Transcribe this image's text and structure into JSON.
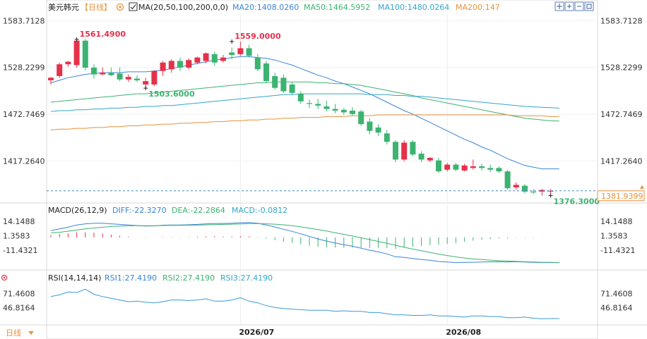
{
  "header": {
    "symbol": "美元韩元",
    "period_tag": "【日线】",
    "settings_icon": "gear-icon",
    "ma_checkbox_icon": "checkbox-icon",
    "ma_params": "MA(20,50,100,200,0,0)",
    "ma20_label": "MA20:1408.0260",
    "ma50_label": "MA50:1464.5952",
    "ma100_label": "MA100:1480.0264",
    "ma200_label": "MA200:147"
  },
  "toolbar": {
    "icons": [
      "crosshair-icon",
      "zoom-in-icon",
      "zoom-out-icon",
      "restore-icon",
      "close-icon"
    ]
  },
  "macd": {
    "params": "MACD(26,12,9)",
    "diff_label": "DIFF:-22.3270",
    "dea_label": "DEA:-22.2864",
    "macd_label": "MACD:-0.0812"
  },
  "rsi": {
    "params": "RSI(14,14,14)",
    "rsi1_label": "RSI1:27.4190",
    "rsi2_label": "RSI2:27.4190",
    "rsi3_label": "RSI3:27.4190"
  },
  "footer": {
    "period_button": "日线",
    "period_icon": "dropdown-icon",
    "dates": [
      "2026/07",
      "2026/08"
    ]
  },
  "colors": {
    "up": "#e6314a",
    "down": "#3cb371",
    "ma20": "#3a84d6",
    "ma50": "#3cb371",
    "ma100": "#32a6c9",
    "ma200": "#e8913a",
    "diff": "#3a84d6",
    "dea": "#3cb371",
    "rsi": "#3a9ad9",
    "current_price_bg": "#ffffff",
    "current_price_fg": "#e8913a"
  },
  "chart_data": [
    {
      "type": "candlestick",
      "title": "美元韩元",
      "y_ticks": [
        "1583.7128",
        "1528.2299",
        "1472.7469",
        "1417.2640"
      ],
      "y_tick_values": [
        1583.7128,
        1528.2299,
        1472.7469,
        1417.264
      ],
      "ylim": [
        1370.87,
        1591.48
      ],
      "annotations": [
        {
          "text": "1561.4900",
          "value": 1561.49,
          "candle": 3
        },
        {
          "text": "1559.0000",
          "value": 1559.0,
          "candle": 21
        },
        {
          "text": "1503.6000",
          "value": 1503.6,
          "candle": 11
        },
        {
          "text": "1376.3000",
          "value": 1376.3,
          "candle": 58
        }
      ],
      "current_price": "1381.9399",
      "current_price_value": 1381.9399,
      "x_labels": [
        {
          "text": "2026/07",
          "candle": 22
        },
        {
          "text": "2026/08",
          "candle": 46
        }
      ],
      "candles": [
        {
          "o": 1513,
          "h": 1517,
          "l": 1508,
          "c": 1516
        },
        {
          "o": 1518,
          "h": 1534,
          "l": 1516,
          "c": 1532
        },
        {
          "o": 1532,
          "h": 1536,
          "l": 1529,
          "c": 1535
        },
        {
          "o": 1531,
          "h": 1562,
          "l": 1528,
          "c": 1560
        },
        {
          "o": 1560,
          "h": 1562,
          "l": 1525,
          "c": 1528
        },
        {
          "o": 1528,
          "h": 1532,
          "l": 1515,
          "c": 1520
        },
        {
          "o": 1520,
          "h": 1528,
          "l": 1519,
          "c": 1522
        },
        {
          "o": 1522,
          "h": 1528,
          "l": 1518,
          "c": 1519
        },
        {
          "o": 1521,
          "h": 1528,
          "l": 1512,
          "c": 1514
        },
        {
          "o": 1514,
          "h": 1520,
          "l": 1511,
          "c": 1517
        },
        {
          "o": 1515,
          "h": 1519,
          "l": 1511,
          "c": 1513
        },
        {
          "o": 1508,
          "h": 1516,
          "l": 1504,
          "c": 1512
        },
        {
          "o": 1508,
          "h": 1525,
          "l": 1506,
          "c": 1524
        },
        {
          "o": 1524,
          "h": 1536,
          "l": 1518,
          "c": 1534
        },
        {
          "o": 1526,
          "h": 1538,
          "l": 1522,
          "c": 1536
        },
        {
          "o": 1536,
          "h": 1540,
          "l": 1524,
          "c": 1528
        },
        {
          "o": 1528,
          "h": 1539,
          "l": 1526,
          "c": 1537
        },
        {
          "o": 1534,
          "h": 1541,
          "l": 1532,
          "c": 1540
        },
        {
          "o": 1536,
          "h": 1546,
          "l": 1533,
          "c": 1545
        },
        {
          "o": 1544,
          "h": 1547,
          "l": 1530,
          "c": 1534
        },
        {
          "o": 1536,
          "h": 1543,
          "l": 1534,
          "c": 1540
        },
        {
          "o": 1546,
          "h": 1552,
          "l": 1538,
          "c": 1543
        },
        {
          "o": 1544,
          "h": 1559,
          "l": 1542,
          "c": 1551
        },
        {
          "o": 1551,
          "h": 1555,
          "l": 1540,
          "c": 1542
        },
        {
          "o": 1540,
          "h": 1544,
          "l": 1524,
          "c": 1526
        },
        {
          "o": 1533,
          "h": 1536,
          "l": 1510,
          "c": 1512
        },
        {
          "o": 1518,
          "h": 1522,
          "l": 1502,
          "c": 1504
        },
        {
          "o": 1516,
          "h": 1520,
          "l": 1498,
          "c": 1500
        },
        {
          "o": 1508,
          "h": 1511,
          "l": 1496,
          "c": 1498
        },
        {
          "o": 1497,
          "h": 1500,
          "l": 1485,
          "c": 1488
        },
        {
          "o": 1486,
          "h": 1490,
          "l": 1480,
          "c": 1485
        },
        {
          "o": 1485,
          "h": 1491,
          "l": 1479,
          "c": 1483
        },
        {
          "o": 1482,
          "h": 1489,
          "l": 1476,
          "c": 1479
        },
        {
          "o": 1479,
          "h": 1485,
          "l": 1474,
          "c": 1477
        },
        {
          "o": 1478,
          "h": 1480,
          "l": 1472,
          "c": 1475
        },
        {
          "o": 1477,
          "h": 1481,
          "l": 1471,
          "c": 1473
        },
        {
          "o": 1476,
          "h": 1478,
          "l": 1459,
          "c": 1461
        },
        {
          "o": 1464,
          "h": 1468,
          "l": 1449,
          "c": 1453
        },
        {
          "o": 1457,
          "h": 1461,
          "l": 1447,
          "c": 1451
        },
        {
          "o": 1450,
          "h": 1454,
          "l": 1437,
          "c": 1440
        },
        {
          "o": 1440,
          "h": 1442,
          "l": 1416,
          "c": 1419
        },
        {
          "o": 1419,
          "h": 1442,
          "l": 1417,
          "c": 1439
        },
        {
          "o": 1440,
          "h": 1442,
          "l": 1423,
          "c": 1425
        },
        {
          "o": 1426,
          "h": 1429,
          "l": 1416,
          "c": 1419
        },
        {
          "o": 1418,
          "h": 1422,
          "l": 1416,
          "c": 1421
        },
        {
          "o": 1418,
          "h": 1421,
          "l": 1403,
          "c": 1405
        },
        {
          "o": 1407,
          "h": 1415,
          "l": 1405,
          "c": 1413
        },
        {
          "o": 1413,
          "h": 1415,
          "l": 1405,
          "c": 1407
        },
        {
          "o": 1406,
          "h": 1414,
          "l": 1405,
          "c": 1412
        },
        {
          "o": 1409,
          "h": 1419,
          "l": 1407,
          "c": 1411
        },
        {
          "o": 1411,
          "h": 1414,
          "l": 1406,
          "c": 1409
        },
        {
          "o": 1409,
          "h": 1413,
          "l": 1404,
          "c": 1407
        },
        {
          "o": 1409,
          "h": 1411,
          "l": 1403,
          "c": 1405
        },
        {
          "o": 1405,
          "h": 1407,
          "l": 1383,
          "c": 1385
        },
        {
          "o": 1386,
          "h": 1392,
          "l": 1383,
          "c": 1389
        },
        {
          "o": 1388,
          "h": 1390,
          "l": 1379,
          "c": 1381
        },
        {
          "o": 1381,
          "h": 1384,
          "l": 1378,
          "c": 1380
        },
        {
          "o": 1381,
          "h": 1384,
          "l": 1376.3,
          "c": 1383
        },
        {
          "o": 1381,
          "h": 1384,
          "l": 1377,
          "c": 1382
        }
      ],
      "ma_series": [
        {
          "name": "MA20",
          "values": [
            1510,
            1513,
            1516,
            1518,
            1520,
            1521,
            1522,
            1522,
            1522,
            1523,
            1523,
            1523,
            1524,
            1525,
            1527,
            1529,
            1531,
            1533,
            1535,
            1537,
            1538,
            1540,
            1541,
            1541,
            1540,
            1539,
            1537,
            1534,
            1531,
            1527,
            1523,
            1519,
            1516,
            1512,
            1509,
            1505,
            1501,
            1497,
            1492,
            1487,
            1482,
            1477,
            1473,
            1468,
            1463,
            1458,
            1453,
            1448,
            1443,
            1439,
            1434,
            1430,
            1425,
            1420,
            1416,
            1412,
            1410,
            1408,
            1408,
            1408
          ]
        },
        {
          "name": "MA50",
          "values": [
            1487,
            1488,
            1489,
            1490,
            1491,
            1492,
            1493,
            1494,
            1495,
            1496,
            1497,
            1497,
            1498,
            1499,
            1500,
            1501,
            1502,
            1503,
            1504,
            1505,
            1506,
            1507,
            1508,
            1509,
            1510,
            1510,
            1511,
            1511,
            1511,
            1511,
            1511,
            1510,
            1510,
            1509,
            1509,
            1508,
            1507,
            1505,
            1503,
            1501,
            1499,
            1497,
            1495,
            1492,
            1490,
            1488,
            1486,
            1484,
            1482,
            1480,
            1478,
            1476,
            1474,
            1472,
            1470,
            1468,
            1467,
            1466,
            1465,
            1464.6
          ]
        },
        {
          "name": "MA100",
          "values": [
            1476,
            1477,
            1477,
            1478,
            1478,
            1479,
            1479,
            1480,
            1480,
            1481,
            1481,
            1482,
            1482,
            1483,
            1483,
            1484,
            1485,
            1486,
            1487,
            1488,
            1489,
            1490,
            1491,
            1492,
            1493,
            1494,
            1495,
            1496,
            1496,
            1497,
            1497,
            1497,
            1497,
            1497,
            1497,
            1497,
            1497,
            1496,
            1496,
            1496,
            1495,
            1495,
            1494,
            1494,
            1493,
            1492,
            1491,
            1490,
            1489,
            1488,
            1487,
            1486,
            1485,
            1484,
            1483,
            1482,
            1481.5,
            1481,
            1480.5,
            1480
          ]
        },
        {
          "name": "MA200",
          "values": [
            1454,
            1455,
            1455,
            1456,
            1456,
            1457,
            1457,
            1458,
            1458,
            1459,
            1459,
            1460,
            1460,
            1461,
            1461,
            1462,
            1462,
            1463,
            1463,
            1464,
            1464,
            1465,
            1465,
            1466,
            1466,
            1467,
            1467,
            1468,
            1468,
            1469,
            1469,
            1469,
            1470,
            1470,
            1470,
            1471,
            1471,
            1471,
            1472,
            1472,
            1472,
            1472,
            1472,
            1472,
            1472,
            1472,
            1472,
            1472,
            1472,
            1472,
            1472,
            1472,
            1472,
            1472,
            1471,
            1471,
            1471,
            1471,
            1470,
            1470
          ]
        }
      ]
    },
    {
      "type": "macd",
      "y_ticks": [
        "14.1488",
        "1.3583",
        "-11.4321"
      ],
      "y_tick_values": [
        14.1488,
        1.3583,
        -11.4321
      ],
      "ylim": [
        -27,
        18
      ],
      "diff": [
        6,
        7.5,
        9,
        11,
        12,
        12.5,
        12.5,
        12,
        11.5,
        11,
        10.5,
        10,
        10.2,
        10.8,
        11,
        11,
        11.2,
        11.5,
        12,
        12.3,
        12.3,
        12.5,
        13,
        13.2,
        12.5,
        11,
        9.2,
        7.2,
        5.3,
        3.1,
        0.8,
        -1.4,
        -3.3,
        -5,
        -6.5,
        -7.9,
        -9.6,
        -11.4,
        -12.9,
        -14.7,
        -17.2,
        -17.8,
        -18.7,
        -19.6,
        -20.3,
        -21.4,
        -21.8,
        -22.4,
        -22.2,
        -22.1,
        -21.8,
        -21.7,
        -21.6,
        -21.8,
        -21.6,
        -21.9,
        -22.2,
        -22.3,
        -22.3,
        -22.3
      ],
      "dea": [
        4,
        4.5,
        5.5,
        6.5,
        7.5,
        8.3,
        9,
        9.6,
        10,
        10.3,
        10.4,
        10.4,
        10.4,
        10.5,
        10.6,
        10.7,
        10.8,
        10.9,
        11.1,
        11.3,
        11.5,
        11.7,
        11.9,
        12.2,
        12.2,
        12,
        11.7,
        11.1,
        10.3,
        9.3,
        8.1,
        6.9,
        5.6,
        4.1,
        2.7,
        1.2,
        -0.4,
        -2,
        -3.6,
        -5.3,
        -7,
        -8.8,
        -10.4,
        -11.9,
        -13.4,
        -14.8,
        -16.1,
        -17.3,
        -18.3,
        -19.1,
        -19.7,
        -20.2,
        -20.7,
        -21,
        -21.3,
        -21.6,
        -21.9,
        -22.1,
        -22.2,
        -22.29
      ],
      "hist": [
        2,
        3,
        3.5,
        4.5,
        4.5,
        4.2,
        3.5,
        2.4,
        1.5,
        0.7,
        0.1,
        -0.4,
        -0.2,
        0.3,
        0.4,
        0.3,
        0.4,
        0.6,
        0.9,
        1,
        0.8,
        0.8,
        1.1,
        1,
        0.3,
        -1,
        -2.5,
        -3.9,
        -5,
        -6.2,
        -7.3,
        -8.3,
        -8.9,
        -9.1,
        -9.2,
        -9.1,
        -9.2,
        -9.4,
        -9.3,
        -9.4,
        -10.2,
        -9,
        -8.3,
        -7.7,
        -6.9,
        -6.6,
        -5.7,
        -5.1,
        -3.9,
        -3,
        -2.1,
        -1.5,
        -0.9,
        -0.8,
        -0.3,
        -0.3,
        -0.3,
        -0.2,
        -0.1,
        -0.08
      ]
    },
    {
      "type": "line",
      "name": "RSI",
      "y_ticks": [
        "71.4608",
        "46.8164"
      ],
      "y_tick_values": [
        71.4608,
        46.8164
      ],
      "ylim": [
        20,
        88
      ],
      "values": [
        66,
        69,
        74,
        73,
        79,
        70,
        66,
        63,
        60,
        57,
        58,
        56,
        55,
        57,
        60,
        60,
        59,
        60,
        62,
        58,
        58,
        60,
        64,
        58,
        55,
        50,
        47,
        45,
        44,
        43,
        42,
        42,
        42,
        40,
        41,
        40,
        40,
        38,
        38,
        36,
        34,
        34,
        33,
        33,
        34,
        32,
        32,
        31,
        30,
        32,
        32,
        31,
        31,
        29,
        29,
        30,
        28,
        27,
        27.4,
        27.42
      ]
    }
  ]
}
